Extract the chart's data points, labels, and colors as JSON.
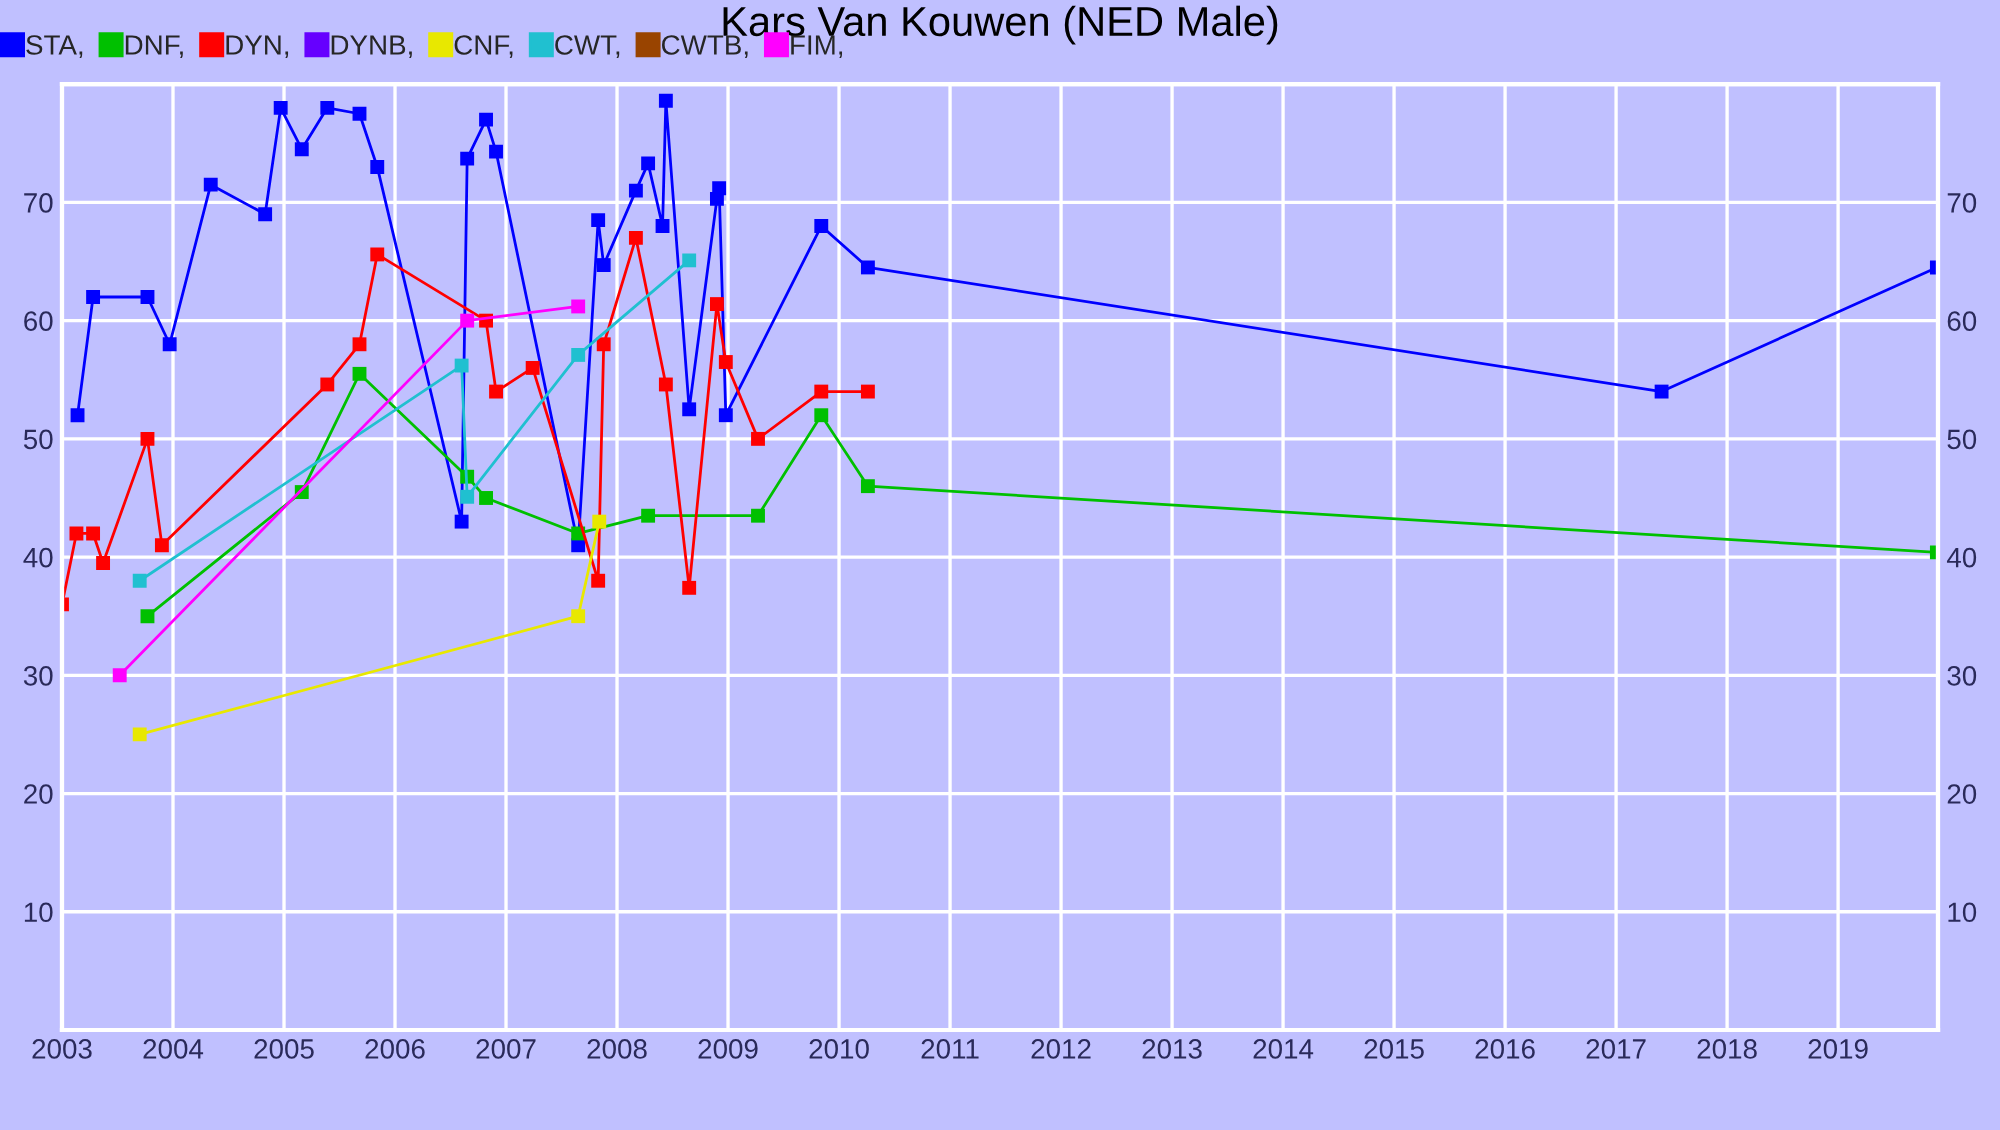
{
  "chart_data": {
    "type": "line",
    "title": "Kars Van Kouwen (NED Male)",
    "xlim": [
      2003,
      2019.9
    ],
    "xticks": [
      2003,
      2004,
      2005,
      2006,
      2007,
      2008,
      2009,
      2010,
      2011,
      2012,
      2013,
      2014,
      2015,
      2016,
      2017,
      2018,
      2019
    ],
    "ylim": [
      0,
      80
    ],
    "yticks": [
      10,
      20,
      30,
      40,
      50,
      60,
      70
    ],
    "y2lim": [
      0,
      80
    ],
    "y2ticks": [
      10,
      20,
      30,
      40,
      50,
      60,
      70
    ],
    "grid": true,
    "legend": "top left",
    "marker": "square",
    "line_style": "solid",
    "series": [
      {
        "name": "STA,",
        "color": "#0000ff",
        "x": [
          2003.14,
          2003.28,
          2003.77,
          2003.97,
          2004.34,
          2004.83,
          2004.97,
          2005.16,
          2005.39,
          2005.68,
          2005.84,
          2006.6,
          2006.65,
          2006.82,
          2006.91,
          2007.65,
          2007.83,
          2007.88,
          2008.17,
          2008.28,
          2008.41,
          2008.44,
          2008.65,
          2008.9,
          2008.92,
          2008.98,
          2009.84,
          2010.26,
          2017.41,
          2019.89
        ],
        "values": [
          52,
          62,
          62,
          58,
          71.5,
          69,
          78,
          74.5,
          78,
          77.5,
          73,
          43,
          73.7,
          77,
          74.3,
          41,
          68.5,
          64.7,
          71,
          73.3,
          68,
          78.6,
          52.5,
          70.3,
          71.2,
          52,
          68,
          64.5,
          54,
          64.5
        ]
      },
      {
        "name": "DNF,",
        "color": "#00c000",
        "x": [
          2003.77,
          2005.16,
          2005.68,
          2006.65,
          2006.82,
          2007.65,
          2008.28,
          2009.27,
          2009.84,
          2010.26,
          2019.89
        ],
        "values": [
          35,
          45.5,
          55.5,
          46.8,
          45,
          42,
          43.5,
          43.5,
          52,
          46,
          40.4
        ]
      },
      {
        "name": "DYN,",
        "color": "#ff0000",
        "x": [
          2003.0,
          2003.13,
          2003.28,
          2003.37,
          2003.77,
          2003.9,
          2005.39,
          2005.68,
          2005.84,
          2006.82,
          2006.91,
          2007.24,
          2007.83,
          2007.88,
          2008.17,
          2008.44,
          2008.65,
          2008.9,
          2008.98,
          2009.27,
          2009.84,
          2010.26
        ],
        "values": [
          36,
          42,
          42,
          39.5,
          50,
          41,
          54.6,
          58,
          65.6,
          60,
          54,
          56,
          38,
          58,
          67,
          54.6,
          37.4,
          61.4,
          56.5,
          50,
          54,
          54
        ]
      },
      {
        "name": "DYNB,",
        "color": "#6600ff"
      },
      {
        "name": "CNF,",
        "color": "#e8e800",
        "x": [
          2003.7,
          2007.65,
          2007.84
        ],
        "values": [
          25,
          35,
          43
        ]
      },
      {
        "name": "CWT,",
        "color": "#20c0d0",
        "x": [
          2003.7,
          2006.6,
          2006.65,
          2007.65,
          2008.65
        ],
        "values": [
          38,
          56.2,
          45.1,
          57.1,
          65.1
        ]
      },
      {
        "name": "CWTB,",
        "color": "#994400"
      },
      {
        "name": "FIM,",
        "color": "#ff00ff",
        "x": [
          2003.52,
          2006.65,
          2007.65
        ],
        "values": [
          30,
          60,
          61.2
        ]
      }
    ]
  }
}
